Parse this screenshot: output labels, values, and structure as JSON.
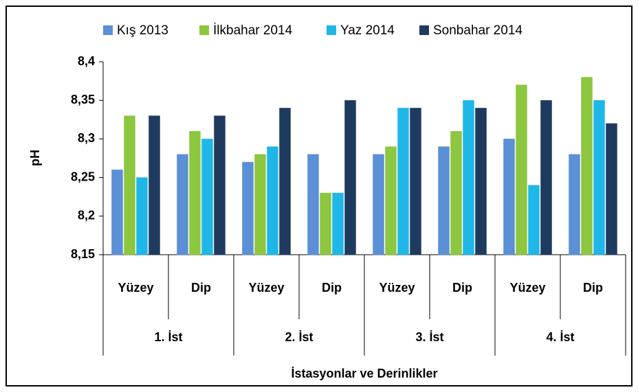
{
  "chart_data": {
    "type": "bar",
    "categories": [
      "Yüzey",
      "Dip",
      "Yüzey",
      "Dip",
      "Yüzey",
      "Dip",
      "Yüzey",
      "Dip"
    ],
    "groups": [
      "1. İst",
      "2. İst",
      "3. İst",
      "4. İst"
    ],
    "xlabel": "İstasyonlar ve Derinlikler",
    "ylabel": "pH",
    "series": [
      {
        "name": "Kış 2013",
        "color": "#5b8fd6",
        "values": [
          8.26,
          8.28,
          8.27,
          8.28,
          8.28,
          8.29,
          8.3,
          8.28
        ]
      },
      {
        "name": "İlkbahar 2014",
        "color": "#8dc63f",
        "values": [
          8.33,
          8.31,
          8.28,
          8.23,
          8.29,
          8.31,
          8.37,
          8.38
        ]
      },
      {
        "name": "Yaz 2014",
        "color": "#1fb7e8",
        "values": [
          8.25,
          8.3,
          8.29,
          8.23,
          8.34,
          8.35,
          8.24,
          8.35
        ]
      },
      {
        "name": "Sonbahar 2014",
        "color": "#1f3a5f",
        "values": [
          8.33,
          8.33,
          8.34,
          8.35,
          8.34,
          8.34,
          8.35,
          8.32
        ]
      }
    ],
    "ylim": [
      8.15,
      8.4
    ],
    "yticks": [
      {
        "value": 8.15,
        "label": "8,15"
      },
      {
        "value": 8.2,
        "label": "8,2"
      },
      {
        "value": 8.25,
        "label": "8,25"
      },
      {
        "value": 8.3,
        "label": "8,3"
      },
      {
        "value": 8.35,
        "label": "8,35"
      },
      {
        "value": 8.4,
        "label": "8,4"
      }
    ],
    "legend": "top",
    "grid": false
  }
}
